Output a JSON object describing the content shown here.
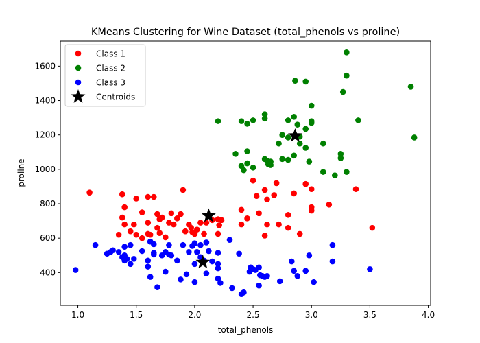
{
  "chart_data": {
    "type": "scatter",
    "title": "KMeans Clustering for Wine Dataset (total_phenols vs proline)",
    "xlabel": "total_phenols",
    "ylabel": "proline",
    "xlim": [
      0.85,
      4.02
    ],
    "ylim": [
      210,
      1745
    ],
    "xticks": [
      1.0,
      1.5,
      2.0,
      2.5,
      3.0,
      3.5,
      4.0
    ],
    "xtick_labels": [
      "1.0",
      "1.5",
      "2.0",
      "2.5",
      "3.0",
      "3.5",
      "4.0"
    ],
    "yticks": [
      400,
      600,
      800,
      1000,
      1200,
      1400,
      1600
    ],
    "ytick_labels": [
      "400",
      "600",
      "800",
      "1000",
      "1200",
      "1400",
      "1600"
    ],
    "grid": false,
    "legend_position": "top-left",
    "series": [
      {
        "name": "Class 1",
        "color": "#ff0000",
        "marker": "circle",
        "points": [
          [
            1.1,
            865
          ],
          [
            1.38,
            855
          ],
          [
            1.4,
            780
          ],
          [
            1.38,
            720
          ],
          [
            1.4,
            680
          ],
          [
            1.35,
            620
          ],
          [
            1.45,
            640
          ],
          [
            1.48,
            680
          ],
          [
            1.5,
            830
          ],
          [
            1.5,
            620
          ],
          [
            1.55,
            750
          ],
          [
            1.55,
            600
          ],
          [
            1.6,
            840
          ],
          [
            1.6,
            690
          ],
          [
            1.6,
            625
          ],
          [
            1.62,
            620
          ],
          [
            1.65,
            840
          ],
          [
            1.68,
            740
          ],
          [
            1.68,
            660
          ],
          [
            1.7,
            710
          ],
          [
            1.7,
            630
          ],
          [
            1.72,
            720
          ],
          [
            1.75,
            605
          ],
          [
            1.78,
            690
          ],
          [
            1.8,
            745
          ],
          [
            1.82,
            680
          ],
          [
            1.85,
            715
          ],
          [
            1.88,
            740
          ],
          [
            1.9,
            880
          ],
          [
            1.92,
            640
          ],
          [
            1.95,
            680
          ],
          [
            1.97,
            660
          ],
          [
            1.98,
            635
          ],
          [
            2.0,
            625
          ],
          [
            2.02,
            650
          ],
          [
            2.05,
            690
          ],
          [
            2.08,
            625
          ],
          [
            2.1,
            690
          ],
          [
            2.15,
            705
          ],
          [
            2.2,
            710
          ],
          [
            2.21,
            675
          ],
          [
            2.23,
            705
          ],
          [
            2.2,
            625
          ],
          [
            2.4,
            765
          ],
          [
            2.4,
            680
          ],
          [
            2.45,
            715
          ],
          [
            2.5,
            935
          ],
          [
            2.53,
            845
          ],
          [
            2.55,
            745
          ],
          [
            2.6,
            880
          ],
          [
            2.6,
            615
          ],
          [
            2.62,
            825
          ],
          [
            2.62,
            680
          ],
          [
            2.68,
            850
          ],
          [
            2.7,
            920
          ],
          [
            2.72,
            680
          ],
          [
            2.8,
            735
          ],
          [
            2.8,
            660
          ],
          [
            2.85,
            860
          ],
          [
            2.9,
            625
          ],
          [
            2.95,
            915
          ],
          [
            3.0,
            780
          ],
          [
            3.0,
            885
          ],
          [
            3.0,
            760
          ],
          [
            3.15,
            795
          ],
          [
            3.38,
            885
          ],
          [
            3.52,
            660
          ]
        ]
      },
      {
        "name": "Class 2",
        "color": "#008000",
        "marker": "circle",
        "points": [
          [
            2.2,
            1280
          ],
          [
            2.35,
            1090
          ],
          [
            2.4,
            1280
          ],
          [
            2.4,
            1020
          ],
          [
            2.42,
            995
          ],
          [
            2.45,
            1105
          ],
          [
            2.45,
            1035
          ],
          [
            2.45,
            1265
          ],
          [
            2.5,
            1010
          ],
          [
            2.5,
            1285
          ],
          [
            2.6,
            1320
          ],
          [
            2.6,
            1295
          ],
          [
            2.6,
            1060
          ],
          [
            2.62,
            1050
          ],
          [
            2.63,
            1030
          ],
          [
            2.65,
            1045
          ],
          [
            2.65,
            1025
          ],
          [
            2.72,
            1150
          ],
          [
            2.75,
            1200
          ],
          [
            2.75,
            1060
          ],
          [
            2.8,
            1285
          ],
          [
            2.8,
            1055
          ],
          [
            2.8,
            1185
          ],
          [
            2.85,
            1305
          ],
          [
            2.85,
            1080
          ],
          [
            2.86,
            1515
          ],
          [
            2.88,
            1260
          ],
          [
            2.9,
            1190
          ],
          [
            2.9,
            1150
          ],
          [
            2.95,
            1510
          ],
          [
            2.95,
            1125
          ],
          [
            2.95,
            1235
          ],
          [
            2.98,
            1045
          ],
          [
            3.0,
            1280
          ],
          [
            3.0,
            1270
          ],
          [
            3.0,
            1370
          ],
          [
            3.1,
            985
          ],
          [
            3.1,
            1150
          ],
          [
            3.2,
            965
          ],
          [
            3.25,
            1090
          ],
          [
            3.25,
            1065
          ],
          [
            3.27,
            1450
          ],
          [
            3.3,
            1545
          ],
          [
            3.3,
            1680
          ],
          [
            3.3,
            985
          ],
          [
            3.4,
            1285
          ],
          [
            3.85,
            1480
          ],
          [
            3.88,
            1185
          ]
        ]
      },
      {
        "name": "Class 3",
        "color": "#0000ff",
        "marker": "circle",
        "points": [
          [
            0.98,
            415
          ],
          [
            1.15,
            560
          ],
          [
            1.25,
            510
          ],
          [
            1.28,
            520
          ],
          [
            1.3,
            530
          ],
          [
            1.35,
            520
          ],
          [
            1.38,
            490
          ],
          [
            1.4,
            500
          ],
          [
            1.4,
            470
          ],
          [
            1.4,
            550
          ],
          [
            1.42,
            480
          ],
          [
            1.45,
            560
          ],
          [
            1.45,
            450
          ],
          [
            1.48,
            480
          ],
          [
            1.55,
            525
          ],
          [
            1.6,
            470
          ],
          [
            1.6,
            435
          ],
          [
            1.62,
            580
          ],
          [
            1.62,
            375
          ],
          [
            1.65,
            565
          ],
          [
            1.65,
            505
          ],
          [
            1.65,
            515
          ],
          [
            1.68,
            315
          ],
          [
            1.72,
            500
          ],
          [
            1.75,
            520
          ],
          [
            1.75,
            405
          ],
          [
            1.78,
            560
          ],
          [
            1.78,
            505
          ],
          [
            1.8,
            500
          ],
          [
            1.85,
            470
          ],
          [
            1.88,
            360
          ],
          [
            1.9,
            560
          ],
          [
            1.93,
            390
          ],
          [
            1.95,
            520
          ],
          [
            1.98,
            555
          ],
          [
            2.0,
            570
          ],
          [
            2.0,
            450
          ],
          [
            2.0,
            345
          ],
          [
            2.02,
            520
          ],
          [
            2.05,
            560
          ],
          [
            2.05,
            490
          ],
          [
            2.08,
            470
          ],
          [
            2.1,
            575
          ],
          [
            2.1,
            395
          ],
          [
            2.12,
            525
          ],
          [
            2.15,
            465
          ],
          [
            2.2,
            450
          ],
          [
            2.2,
            425
          ],
          [
            2.2,
            515
          ],
          [
            2.2,
            365
          ],
          [
            2.22,
            340
          ],
          [
            2.3,
            590
          ],
          [
            2.32,
            310
          ],
          [
            2.38,
            510
          ],
          [
            2.4,
            275
          ],
          [
            2.42,
            285
          ],
          [
            2.47,
            405
          ],
          [
            2.48,
            430
          ],
          [
            2.5,
            420
          ],
          [
            2.52,
            415
          ],
          [
            2.55,
            430
          ],
          [
            2.55,
            325
          ],
          [
            2.56,
            385
          ],
          [
            2.58,
            380
          ],
          [
            2.6,
            375
          ],
          [
            2.62,
            380
          ],
          [
            2.73,
            350
          ],
          [
            2.83,
            465
          ],
          [
            2.85,
            410
          ],
          [
            2.88,
            380
          ],
          [
            2.95,
            410
          ],
          [
            2.98,
            500
          ],
          [
            3.02,
            345
          ],
          [
            3.18,
            560
          ],
          [
            3.18,
            465
          ],
          [
            3.5,
            420
          ]
        ]
      }
    ],
    "centroids": {
      "name": "Centroids",
      "color": "#000000",
      "marker": "star",
      "points": [
        [
          2.12,
          730
        ],
        [
          2.07,
          460
        ],
        [
          2.86,
          1195
        ]
      ]
    }
  }
}
